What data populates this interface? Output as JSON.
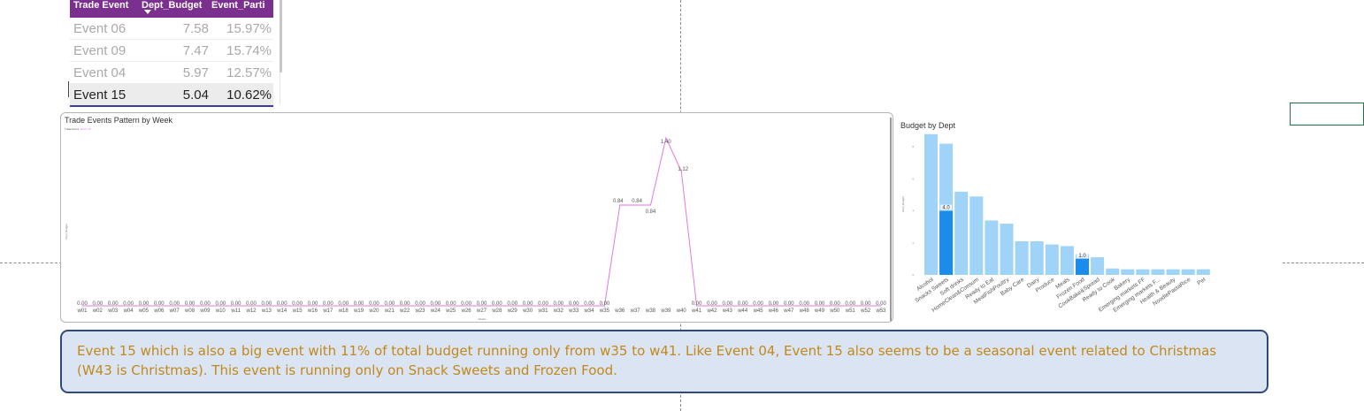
{
  "table": {
    "headers": [
      "Trade Event",
      "Dept_Budget",
      "Event_Parti"
    ],
    "rows": [
      {
        "event": "Event 06",
        "budget": "7.58",
        "pct": "15.97%"
      },
      {
        "event": "Event 09",
        "budget": "7.47",
        "pct": "15.74%"
      },
      {
        "event": "Event 04",
        "budget": "5.97",
        "pct": "12.57%"
      },
      {
        "event": "Event 15",
        "budget": "5.04",
        "pct": "10.62%",
        "selected": true
      }
    ]
  },
  "line_chart": {
    "title": "Trade Events Pattern by Week",
    "legend_title": "Trade Event",
    "legend_item": "Event 15",
    "xlabel": "Weeks",
    "ylabel": "Dept_Budget",
    "line_color": "#e37ad8"
  },
  "bar_chart": {
    "title": "Budget by Dept",
    "ylabel": "Dept_Budget",
    "base_color": "#9fd3f7",
    "highlight_color": "#1a8ceb"
  },
  "callout": {
    "text": "Event 15 which is also a big event with 11% of total budget running only from w35 to w41. Like Event 04, Event 15 also seems to be a seasonal event related to Christmas (W43 is Christmas). This event is running only on Snack Sweets and Frozen Food."
  },
  "chart_data": [
    {
      "type": "line",
      "title": "Trade Events Pattern by Week",
      "xlabel": "Weeks",
      "ylabel": "Dept_Budget",
      "x": [
        "w01",
        "w02",
        "w03",
        "w04",
        "w05",
        "w06",
        "w07",
        "w08",
        "w09",
        "w10",
        "w11",
        "w12",
        "w13",
        "w14",
        "w15",
        "w16",
        "w17",
        "w18",
        "w19",
        "w20",
        "w21",
        "w22",
        "w23",
        "w24",
        "w25",
        "w26",
        "w27",
        "w28",
        "w29",
        "w30",
        "w31",
        "w32",
        "w33",
        "w34",
        "w35",
        "w36",
        "w37",
        "w38",
        "w39",
        "w40",
        "w41",
        "w42",
        "w43",
        "w44",
        "w45",
        "w46",
        "w47",
        "w48",
        "w49",
        "w50",
        "w51",
        "w52",
        "w53"
      ],
      "series": [
        {
          "name": "Event 15",
          "values": [
            0,
            0,
            0,
            0,
            0,
            0,
            0,
            0,
            0,
            0,
            0,
            0,
            0,
            0,
            0,
            0,
            0,
            0,
            0,
            0,
            0,
            0,
            0,
            0,
            0,
            0,
            0,
            0,
            0,
            0,
            0,
            0,
            0,
            0,
            0,
            0.84,
            0.84,
            0.84,
            1.4,
            1.12,
            0,
            0,
            0,
            0,
            0,
            0,
            0,
            0,
            0,
            0,
            0,
            0,
            0
          ]
        }
      ],
      "labels": [
        "0.00",
        "0.00",
        "0.00",
        "0.00",
        "0.00",
        "0.00",
        "0.00",
        "0.00",
        "0.00",
        "0.00",
        "0.00",
        "0.00",
        "0.00",
        "0.00",
        "0.00",
        "0.00",
        "0.00",
        "0.00",
        "0.00",
        "0.00",
        "0.00",
        "0.00",
        "0.00",
        "0.00",
        "0.00",
        "0.00",
        "0.00",
        "0.00",
        "0.00",
        "0.00",
        "0.00",
        "0.00",
        "0.00",
        "0.00",
        "0.00",
        "0.84",
        "0.84",
        "0.84",
        "1.40",
        "1.12",
        "0.00",
        "0.00",
        "0.00",
        "0.00",
        "0.00",
        "0.00",
        "0.00",
        "0.00",
        "0.00",
        "0.00",
        "0.00",
        "0.00",
        "0.00"
      ],
      "ylim": [
        0,
        1.4
      ]
    },
    {
      "type": "bar",
      "title": "Budget by Dept",
      "ylabel": "Dept_Budget",
      "categories": [
        "Alcohol",
        "Snacks Sweets",
        "Soft drinks",
        "HomeClean&Consum",
        "Ready to Eat",
        "MeatFishPoultry",
        "Baby Care",
        "Dairy",
        "Produce",
        "Meals",
        "Frozen Food",
        "CookBake&Spread",
        "Ready to Cook",
        "Bakery",
        "Emerging markets FF",
        "Emerging markets F...",
        "Health & Beauty",
        "NoodlePastaRice",
        "Pet"
      ],
      "series": [
        {
          "name": "Dept_Budget",
          "values": [
            8.8,
            8.2,
            5.2,
            4.9,
            3.4,
            3.2,
            2.1,
            2.1,
            1.9,
            1.8,
            1.3,
            1.1,
            0.4,
            0.35,
            0.35,
            0.35,
            0.35,
            0.35,
            0.35
          ]
        },
        {
          "name": "Event 15",
          "values": [
            0,
            4.0,
            0,
            0,
            0,
            0,
            0,
            0,
            0,
            0,
            1.0,
            0,
            0,
            0,
            0,
            0,
            0,
            0,
            0
          ]
        }
      ],
      "highlight_labels": {
        "1": "4.0",
        "10": "1.0"
      },
      "ylim": [
        0,
        10
      ]
    }
  ]
}
